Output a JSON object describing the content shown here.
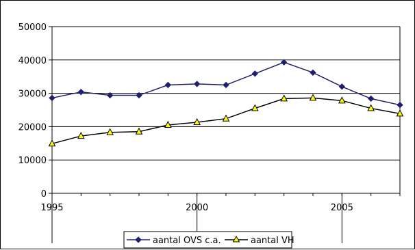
{
  "chart_data": {
    "type": "line",
    "x": [
      1995,
      1996,
      1997,
      1998,
      1999,
      2000,
      2001,
      2002,
      2003,
      2004,
      2005,
      2006,
      2007
    ],
    "x_tick_labels": [
      "1995",
      "2000",
      "2005"
    ],
    "y_tick_labels": [
      "0",
      "10000",
      "20000",
      "30000",
      "40000",
      "50000"
    ],
    "ylim": [
      0,
      50000
    ],
    "xlim": [
      1995,
      2007
    ],
    "grid": "horizontal",
    "legend_position": "bottom",
    "series": [
      {
        "name": "aantal OVS  c.a.",
        "color": "#1f1f6e",
        "marker": "diamond",
        "values": [
          28600,
          30400,
          29400,
          29400,
          32500,
          32800,
          32500,
          35900,
          39300,
          36200,
          32000,
          28400,
          26500
        ]
      },
      {
        "name": "aantal VH",
        "color": "#000000",
        "marker_fill": "#ffff00",
        "marker": "triangle",
        "values": [
          14900,
          17200,
          18300,
          18500,
          20500,
          21300,
          22400,
          25500,
          28400,
          28600,
          27800,
          25500,
          23900
        ]
      }
    ]
  }
}
